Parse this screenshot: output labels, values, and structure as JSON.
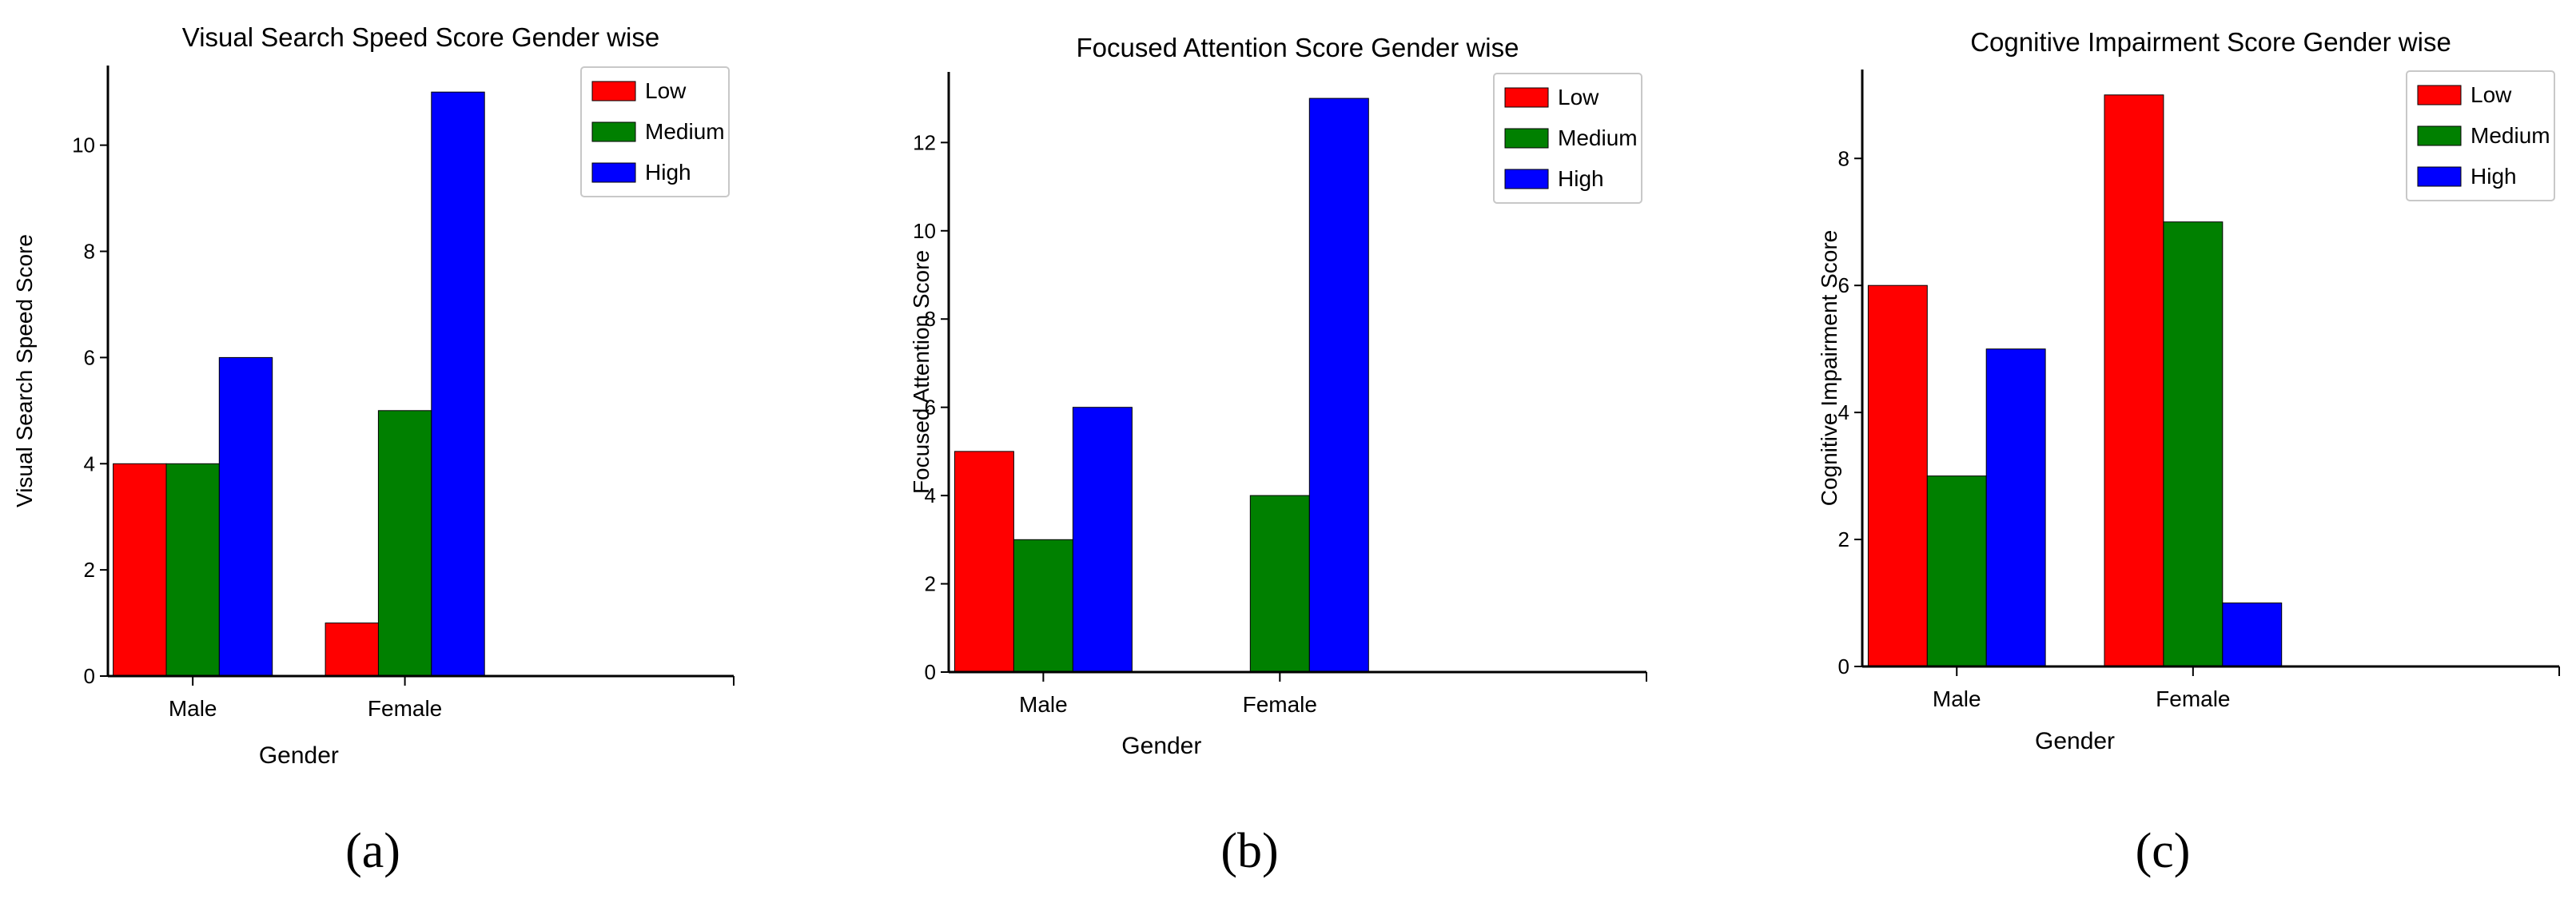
{
  "chart_data": [
    {
      "panel_label": "(a)",
      "type": "bar",
      "title": "Visual Search Speed Score Gender wise",
      "xlabel": "Gender",
      "ylabel": "Visual Search Speed Score",
      "categories": [
        "Male",
        "Female"
      ],
      "ylim": [
        0,
        11.5
      ],
      "yticks": [
        0,
        2,
        4,
        6,
        8,
        10
      ],
      "legend_position": "top-right",
      "series": [
        {
          "name": "Low",
          "color": "#ff0000",
          "values": [
            4,
            1
          ]
        },
        {
          "name": "Medium",
          "color": "#008000",
          "values": [
            4,
            5
          ]
        },
        {
          "name": "High",
          "color": "#0000ff",
          "values": [
            6,
            11
          ]
        }
      ]
    },
    {
      "panel_label": "(b)",
      "type": "bar",
      "title": "Focused Attention Score Gender wise",
      "xlabel": "Gender",
      "ylabel": "Focused Attention Score",
      "categories": [
        "Male",
        "Female"
      ],
      "ylim": [
        0,
        13.6
      ],
      "yticks": [
        0,
        2,
        4,
        6,
        8,
        10,
        12
      ],
      "legend_position": "top-right",
      "series": [
        {
          "name": "Low",
          "color": "#ff0000",
          "values": [
            5,
            0
          ]
        },
        {
          "name": "Medium",
          "color": "#008000",
          "values": [
            3,
            4
          ]
        },
        {
          "name": "High",
          "color": "#0000ff",
          "values": [
            6,
            13
          ]
        }
      ]
    },
    {
      "panel_label": "(c)",
      "type": "bar",
      "title": "Cognitive Impairment Score Gender wise",
      "xlabel": "Gender",
      "ylabel": "Cognitive Impairment Score",
      "categories": [
        "Male",
        "Female"
      ],
      "ylim": [
        0,
        9.4
      ],
      "yticks": [
        0,
        2,
        4,
        6,
        8
      ],
      "legend_position": "top-right",
      "series": [
        {
          "name": "Low",
          "color": "#ff0000",
          "values": [
            6,
            9
          ]
        },
        {
          "name": "Medium",
          "color": "#008000",
          "values": [
            3,
            7
          ]
        },
        {
          "name": "High",
          "color": "#0000ff",
          "values": [
            5,
            1
          ]
        }
      ]
    }
  ]
}
